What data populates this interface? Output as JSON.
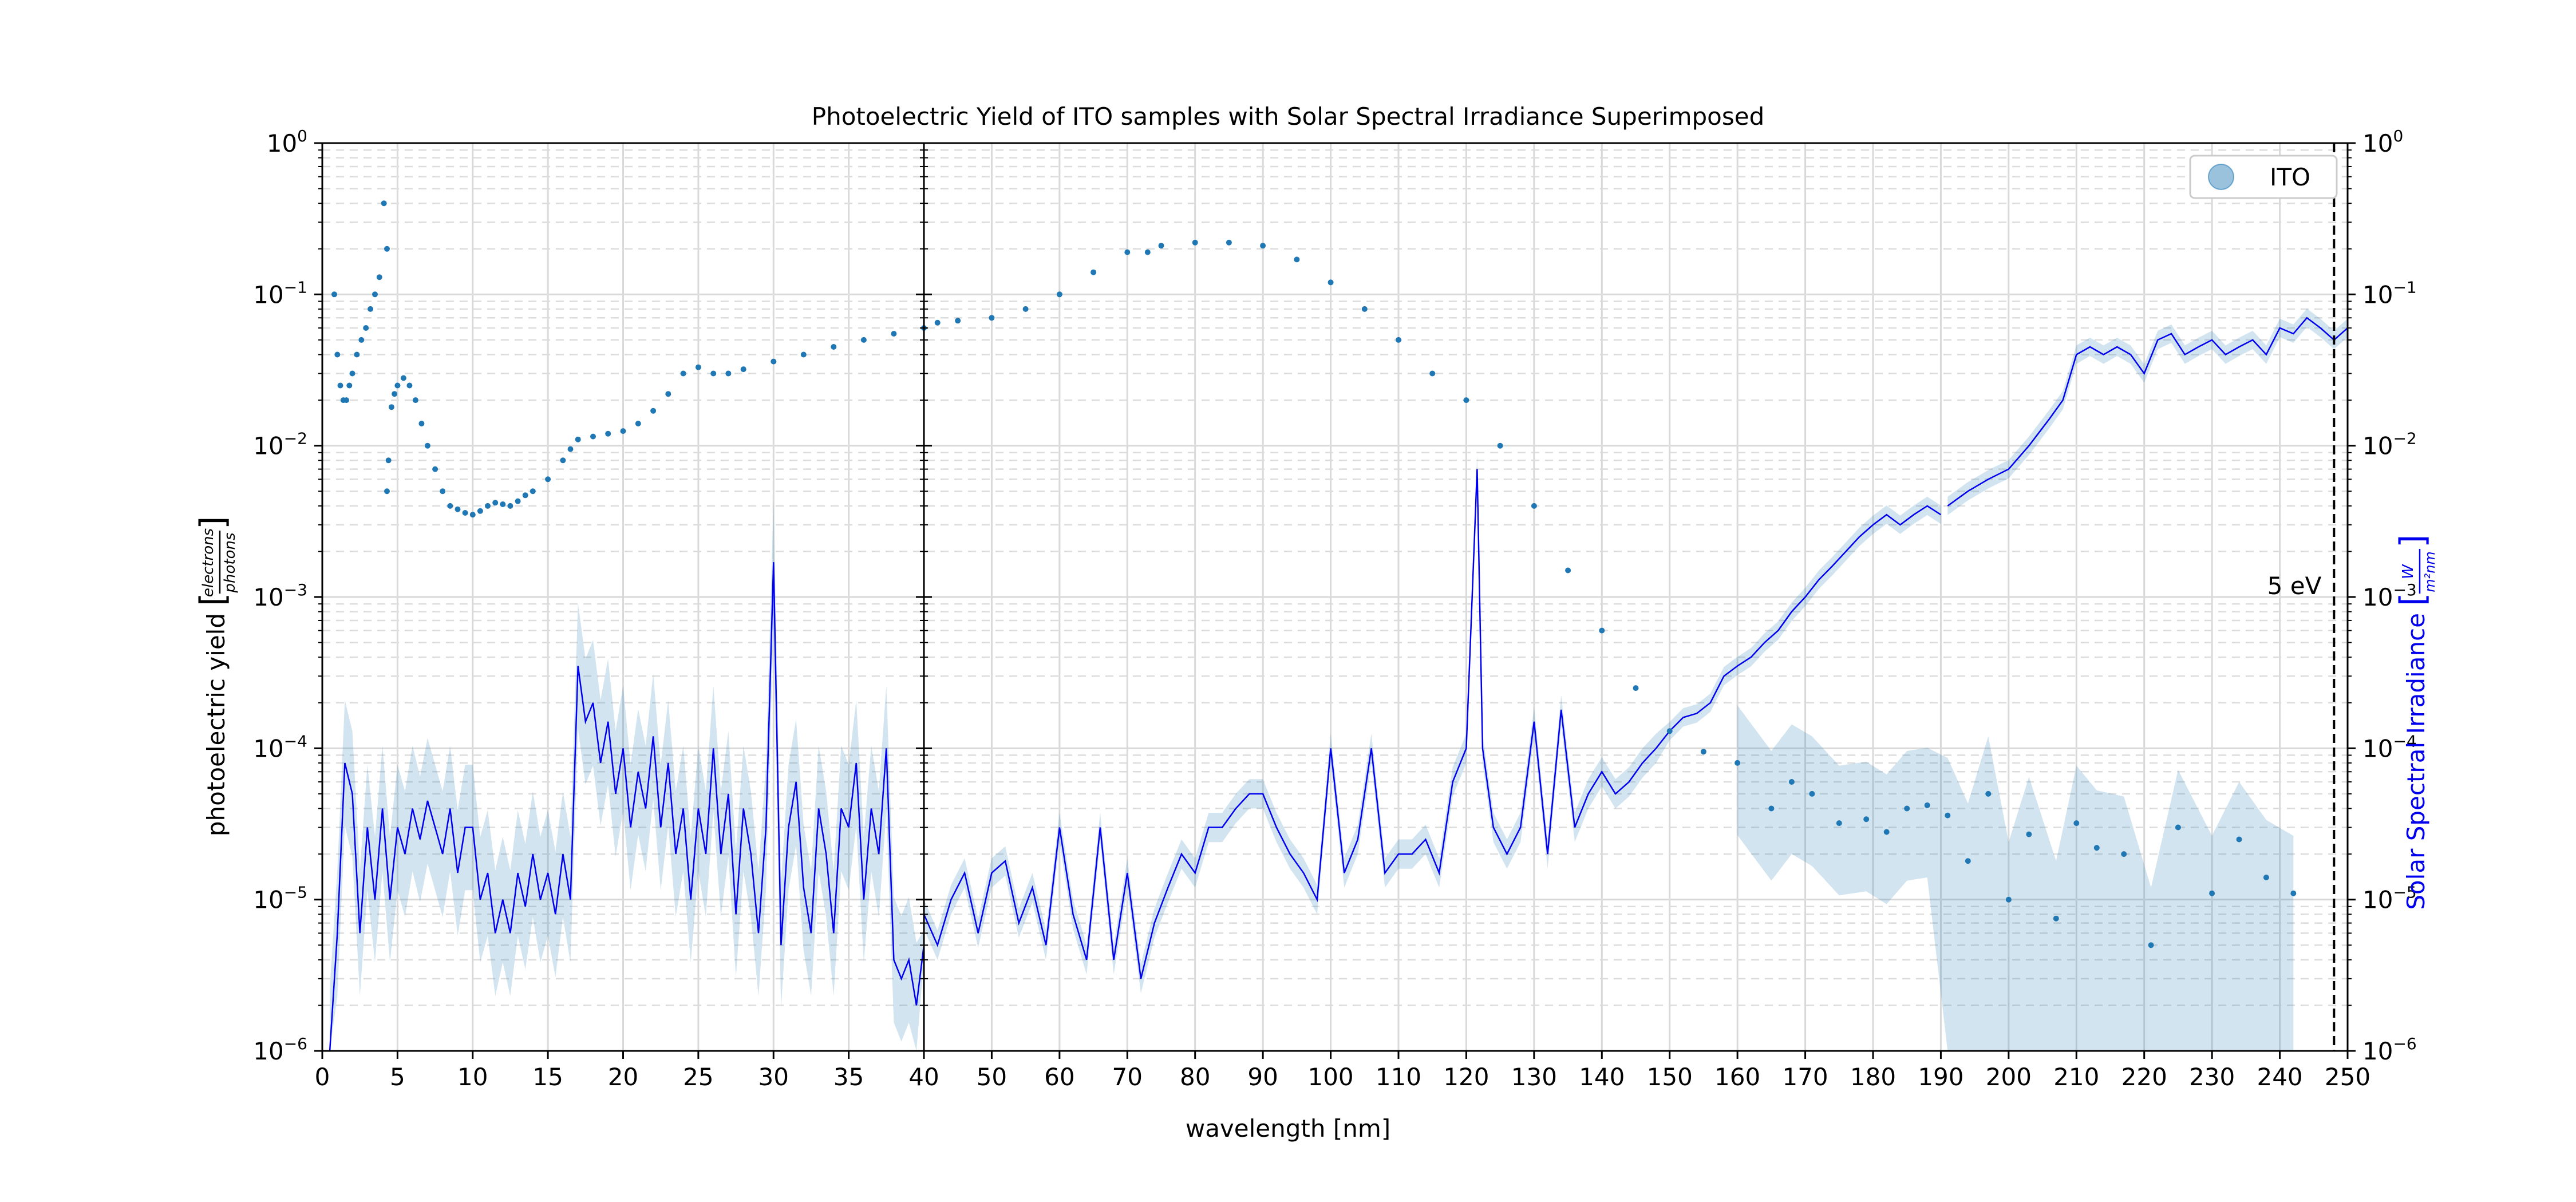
{
  "chart_data": {
    "type": "scatter",
    "title": "Photoelectric Yield of ITO samples with Solar Spectral Irradiance Superimposed",
    "xlabel": "wavelength [nm]",
    "ylabel": "photoelectric yield",
    "ylabel_fraction": {
      "numerator": "electrons",
      "denominator": "photons"
    },
    "y2label": "Solar Spectral Irradiance",
    "y2label_fraction": {
      "numerator": "W",
      "denominator": "m²nm"
    },
    "x_scale": "piecewise-linear",
    "x_segments": [
      {
        "xlim": [
          0,
          40
        ],
        "ticks": [
          0,
          5,
          10,
          15,
          20,
          25,
          30,
          35,
          40
        ]
      },
      {
        "xlim": [
          40,
          250
        ],
        "ticks": [
          40,
          50,
          60,
          70,
          80,
          90,
          100,
          110,
          120,
          130,
          140,
          150,
          160,
          170,
          180,
          190,
          200,
          210,
          220,
          230,
          240,
          250
        ]
      }
    ],
    "y_scale": "log",
    "ylim": [
      1e-06,
      1
    ],
    "y2lim": [
      1e-06,
      1
    ],
    "y_tick_base": "10",
    "y_tick_exponents": [
      "0",
      "−1",
      "−2",
      "−3",
      "−4",
      "−5",
      "−6"
    ],
    "grid": true,
    "legend": {
      "placement": "top-right",
      "entries": [
        "ITO"
      ]
    },
    "annotations": [
      {
        "text": "5 eV",
        "x": 248,
        "style": "dashed vertical line"
      }
    ],
    "series": [
      {
        "name": "ITO",
        "kind": "scatter",
        "color": "#1f77b4",
        "x": [
          0.8,
          1.0,
          1.2,
          1.4,
          1.6,
          1.8,
          2.0,
          2.3,
          2.6,
          2.9,
          3.2,
          3.5,
          3.8,
          4.1,
          4.3,
          4.3,
          4.4,
          4.6,
          4.8,
          5.0,
          5.4,
          5.8,
          6.2,
          6.6,
          7.0,
          7.5,
          8.0,
          8.5,
          9.0,
          9.5,
          10.0,
          10.5,
          11.0,
          11.5,
          12.0,
          12.5,
          13.0,
          13.5,
          14.0,
          15.0,
          16.0,
          16.5,
          17.0,
          18.0,
          19.0,
          20.0,
          21.0,
          22.0,
          23.0,
          24.0,
          25.0,
          26.0,
          27.0,
          28.0,
          30.0,
          32.0,
          34.0,
          36.0,
          38.0,
          40.0,
          42.0,
          45.0,
          50.0,
          55.0,
          60.0,
          65.0,
          70.0,
          73.0,
          75.0,
          80.0,
          85.0,
          90.0,
          95.0,
          100.0,
          105.0,
          110.0,
          115.0,
          120.0,
          125.0,
          130.0,
          135.0,
          140.0,
          145.0,
          150.0,
          155.0,
          160.0,
          165.0,
          168.0,
          171.0,
          175.0,
          179.0,
          182.0,
          185.0,
          188.0,
          191.0,
          194.0,
          197.0,
          200.0,
          203.0,
          207.0,
          210.0,
          213.0,
          217.0,
          221.0,
          225.0,
          230.0,
          234.0,
          238.0,
          242.0
        ],
        "y": [
          0.1,
          0.04,
          0.025,
          0.02,
          0.02,
          0.025,
          0.03,
          0.04,
          0.05,
          0.06,
          0.08,
          0.1,
          0.13,
          0.4,
          0.2,
          0.005,
          0.008,
          0.018,
          0.022,
          0.025,
          0.028,
          0.025,
          0.02,
          0.014,
          0.01,
          0.007,
          0.005,
          0.004,
          0.0038,
          0.0036,
          0.0035,
          0.0037,
          0.004,
          0.0042,
          0.0041,
          0.004,
          0.0043,
          0.0047,
          0.005,
          0.006,
          0.008,
          0.0095,
          0.011,
          0.0115,
          0.012,
          0.0125,
          0.014,
          0.017,
          0.022,
          0.03,
          0.033,
          0.03,
          0.03,
          0.032,
          0.036,
          0.04,
          0.045,
          0.05,
          0.055,
          0.06,
          0.065,
          0.067,
          0.07,
          0.08,
          0.1,
          0.14,
          0.19,
          0.19,
          0.21,
          0.22,
          0.22,
          0.21,
          0.17,
          0.12,
          0.08,
          0.05,
          0.03,
          0.02,
          0.01,
          0.004,
          0.0015,
          0.0006,
          0.00025,
          0.00013,
          9.5e-05,
          8e-05,
          4e-05,
          6e-05,
          5e-05,
          3.2e-05,
          3.4e-05,
          2.8e-05,
          4e-05,
          4.2e-05,
          3.6e-05,
          1.8e-05,
          5e-05,
          1e-05,
          2.7e-05,
          7.5e-06,
          3.2e-05,
          2.2e-05,
          2e-05,
          5e-06,
          3e-05,
          1.1e-05,
          2.5e-05,
          1.4e-05,
          1.1e-05
        ]
      },
      {
        "name": "",
        "kind": "line",
        "axis": "y2",
        "color": "#0000ee",
        "x": [
          0.5,
          1.0,
          1.5,
          2.0,
          2.5,
          3.0,
          3.5,
          4.0,
          4.5,
          5.0,
          5.5,
          6.0,
          6.5,
          7.0,
          7.5,
          8.0,
          8.5,
          9.0,
          9.5,
          10.0,
          10.5,
          11.0,
          11.5,
          12.0,
          12.5,
          13.0,
          13.5,
          14.0,
          14.5,
          15.0,
          15.5,
          16.0,
          16.5,
          17.0,
          17.5,
          18.0,
          18.5,
          19.0,
          19.5,
          20.0,
          20.5,
          21.0,
          21.5,
          22.0,
          22.5,
          23.0,
          23.5,
          24.0,
          24.5,
          25.0,
          25.5,
          26.0,
          26.5,
          27.0,
          27.5,
          28.0,
          28.5,
          29.0,
          29.5,
          30.0,
          30.5,
          31.0,
          31.5,
          32.0,
          32.5,
          33.0,
          33.5,
          34.0,
          34.5,
          35.0,
          35.5,
          36.0,
          36.5,
          37.0,
          37.5,
          38.0,
          38.5,
          39.0,
          39.5,
          40.0
        ],
        "y": [
          1e-06,
          6e-06,
          8e-05,
          5e-05,
          6e-06,
          3e-05,
          1e-05,
          4e-05,
          1e-05,
          3e-05,
          2e-05,
          4e-05,
          2.5e-05,
          4.5e-05,
          3e-05,
          2e-05,
          4e-05,
          1.5e-05,
          3e-05,
          3e-05,
          1e-05,
          1.5e-05,
          6e-06,
          1e-05,
          6e-06,
          1.5e-05,
          9e-06,
          2e-05,
          1e-05,
          1.5e-05,
          8e-06,
          2e-05,
          1e-05,
          0.00035,
          0.00015,
          0.0002,
          8e-05,
          0.00015,
          5e-05,
          0.0001,
          3e-05,
          7e-05,
          4e-05,
          0.00012,
          3e-05,
          8e-05,
          2e-05,
          4e-05,
          1e-05,
          4e-05,
          2e-05,
          0.0001,
          2e-05,
          5e-05,
          8e-06,
          4e-05,
          2e-05,
          6e-06,
          3e-05,
          0.0017,
          5e-06,
          3e-05,
          6e-05,
          1.2e-05,
          6e-06,
          4e-05,
          2e-05,
          6e-06,
          4e-05,
          3e-05,
          8e-05,
          1e-05,
          4e-05,
          2e-05,
          0.0001,
          4e-06,
          3e-06,
          4e-06,
          2e-06,
          5e-06
        ]
      },
      {
        "name": "",
        "kind": "line",
        "axis": "y2",
        "color": "#0000ee",
        "x": [
          40,
          42,
          44,
          46,
          48,
          50,
          52,
          54,
          56,
          58,
          60,
          62,
          64,
          66,
          68,
          70,
          72,
          74,
          76,
          78,
          80,
          82,
          84,
          86,
          88,
          90,
          92,
          94,
          96,
          98,
          100,
          102,
          104,
          106,
          108,
          110,
          112,
          114,
          116,
          118,
          120,
          121.6,
          122.4,
          124,
          126,
          128,
          130,
          132,
          134,
          136,
          138,
          140,
          142,
          144,
          146,
          148,
          150,
          152,
          154,
          156,
          158,
          160,
          162,
          164,
          166,
          168,
          170,
          172,
          174,
          176,
          178,
          180,
          182,
          184,
          186,
          188,
          190
        ],
        "y": [
          8e-06,
          5e-06,
          1e-05,
          1.5e-05,
          6e-06,
          1.5e-05,
          1.8e-05,
          7e-06,
          1.2e-05,
          5e-06,
          3e-05,
          8e-06,
          4e-06,
          3e-05,
          4e-06,
          1.5e-05,
          3e-06,
          7e-06,
          1.2e-05,
          2e-05,
          1.5e-05,
          3e-05,
          3e-05,
          4e-05,
          5e-05,
          5e-05,
          3e-05,
          2e-05,
          1.5e-05,
          1e-05,
          0.0001,
          1.5e-05,
          2.5e-05,
          0.0001,
          1.5e-05,
          2e-05,
          2e-05,
          2.5e-05,
          1.5e-05,
          6e-05,
          0.0001,
          0.007,
          0.0001,
          3e-05,
          2e-05,
          3e-05,
          0.00015,
          2e-05,
          0.00018,
          3e-05,
          5e-05,
          7e-05,
          5e-05,
          6e-05,
          8e-05,
          0.0001,
          0.00013,
          0.00016,
          0.00017,
          0.0002,
          0.0003,
          0.00035,
          0.0004,
          0.0005,
          0.0006,
          0.0008,
          0.001,
          0.0013,
          0.0016,
          0.002,
          0.0025,
          0.003,
          0.0035,
          0.003,
          0.0035,
          0.004,
          0.0035
        ]
      },
      {
        "name": "",
        "kind": "line",
        "axis": "y2",
        "color": "#0000ee",
        "x": [
          191,
          194,
          197,
          200,
          203,
          206,
          208,
          210,
          212,
          214,
          216,
          218,
          220,
          222,
          224,
          226,
          228,
          230,
          232,
          234,
          236,
          238,
          240,
          242,
          244,
          246,
          248,
          250
        ],
        "y": [
          0.004,
          0.005,
          0.006,
          0.007,
          0.01,
          0.015,
          0.02,
          0.04,
          0.045,
          0.04,
          0.045,
          0.04,
          0.03,
          0.05,
          0.055,
          0.04,
          0.045,
          0.05,
          0.04,
          0.045,
          0.05,
          0.04,
          0.06,
          0.055,
          0.07,
          0.06,
          0.05,
          0.06
        ]
      }
    ]
  }
}
